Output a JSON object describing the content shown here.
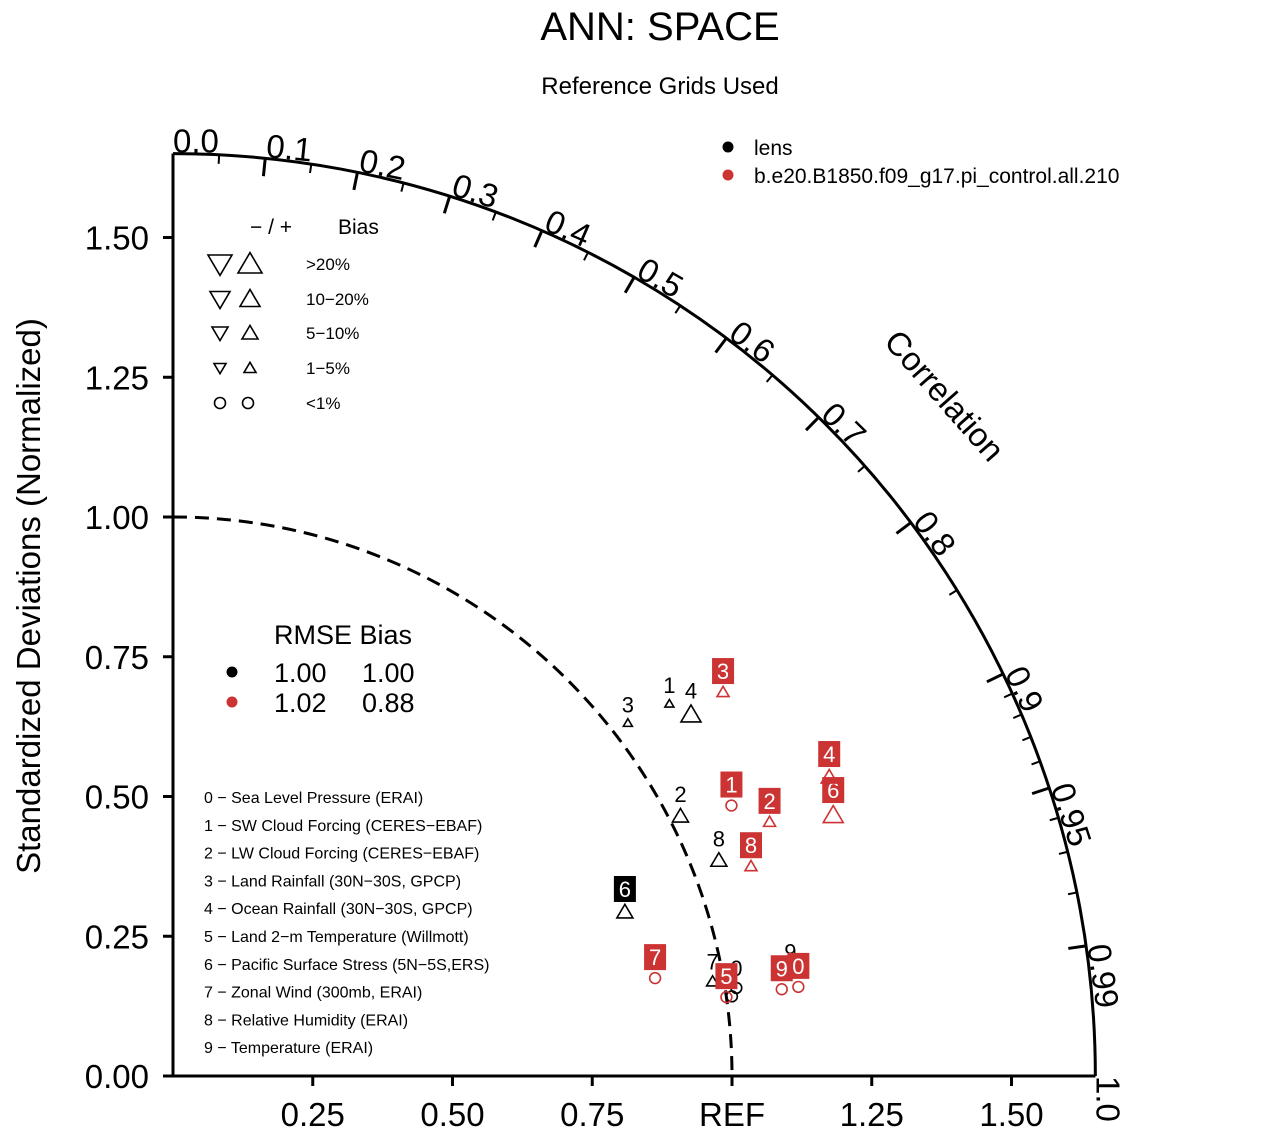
{
  "title": "ANN: SPACE",
  "subtitle": "Reference Grids Used",
  "colors": {
    "model_a": "#000000",
    "model_b": "#cc3333"
  },
  "chart_data": {
    "type": "scatter",
    "ylabel": "Standardized Deviations (Normalized)",
    "correlation_label": "Correlation",
    "x_ticks": [
      "0.25",
      "0.50",
      "0.75",
      "REF",
      "1.25",
      "1.50"
    ],
    "y_ticks": [
      "0.00",
      "0.25",
      "0.50",
      "0.75",
      "1.00",
      "1.25",
      "1.50"
    ],
    "correlation_ticks": [
      "0.0",
      "0.1",
      "0.2",
      "0.3",
      "0.4",
      "0.5",
      "0.6",
      "0.7",
      "0.8",
      "0.9",
      "0.95",
      "0.99",
      "1.0"
    ],
    "std_range": [
      0,
      1.65
    ],
    "legend": [
      {
        "name": "lens",
        "color": "#000000"
      },
      {
        "name": "b.e20.B1850.f09_g17.pi_control.all.210",
        "color": "#cc3333"
      }
    ],
    "bias_legend": {
      "header_sign": "− / +",
      "header_label": "Bias",
      "rows": [
        "<1%",
        "1−5%",
        "5−10%",
        "10−20%",
        ">20%"
      ]
    },
    "stats": {
      "header": "RMSE Bias",
      "rows": [
        {
          "color": "#000000",
          "rmse": "1.00",
          "bias": "1.00"
        },
        {
          "color": "#cc3333",
          "rmse": "1.02",
          "bias": "0.88"
        }
      ]
    },
    "variables": [
      "0 − Sea Level Pressure (ERAI)",
      "1 − SW Cloud Forcing (CERES−EBAF)",
      "2 − LW Cloud Forcing (CERES−EBAF)",
      "3 − Land Rainfall (30N−30S, GPCP)",
      "4 − Ocean Rainfall (30N−30S, GPCP)",
      "5 − Land 2−m Temperature (Willmott)",
      "6 − Pacific Surface Stress (5N−5S,ERS)",
      "7 − Zonal Wind (300mb, ERAI)",
      "8 − Relative Humidity (ERAI)",
      "9 − Temperature (ERAI)"
    ],
    "points": [
      {
        "series": 0,
        "label": "3",
        "r": 0.79,
        "std": 1.03,
        "marker": "up",
        "size": 1
      },
      {
        "series": 0,
        "label": "1",
        "r": 0.8,
        "std": 1.11,
        "marker": "up",
        "size": 1
      },
      {
        "series": 0,
        "label": "4",
        "r": 0.82,
        "std": 1.13,
        "marker": "up",
        "size": 4
      },
      {
        "series": 0,
        "label": "2",
        "r": 0.89,
        "std": 1.02,
        "marker": "up",
        "size": 3
      },
      {
        "series": 0,
        "label": "8",
        "r": 0.93,
        "std": 1.05,
        "marker": "up",
        "size": 3
      },
      {
        "series": 0,
        "label": "6",
        "r": 0.94,
        "std": 0.86,
        "marker": "up",
        "size": 3
      },
      {
        "series": 0,
        "label": "7",
        "r": 0.985,
        "std": 0.98,
        "marker": "up",
        "size": 2
      },
      {
        "series": 0,
        "label": "5",
        "r": 0.99,
        "std": 1.01,
        "marker": "circle",
        "size": 2
      },
      {
        "series": 0,
        "label": "0",
        "r": 0.988,
        "std": 1.02,
        "marker": "circle",
        "size": 2
      },
      {
        "series": 0,
        "label": "9",
        "r": 0.986,
        "std": 1.12,
        "marker": "circle",
        "size": 2
      },
      {
        "series": 1,
        "label": "3",
        "r": 0.82,
        "std": 1.2,
        "marker": "up",
        "size": 2
      },
      {
        "series": 1,
        "label": "1",
        "r": 0.9,
        "std": 1.11,
        "marker": "circle",
        "size": 2
      },
      {
        "series": 1,
        "label": "2",
        "r": 0.92,
        "std": 1.16,
        "marker": "up",
        "size": 2
      },
      {
        "series": 1,
        "label": "6",
        "r": 0.93,
        "std": 1.27,
        "marker": "up",
        "size": 4
      },
      {
        "series": 1,
        "label": "4",
        "r": 0.91,
        "std": 1.29,
        "marker": "up",
        "size": 3
      },
      {
        "series": 1,
        "label": "8",
        "r": 0.94,
        "std": 1.1,
        "marker": "up",
        "size": 2
      },
      {
        "series": 1,
        "label": "7",
        "r": 0.98,
        "std": 0.88,
        "marker": "circle",
        "size": 2
      },
      {
        "series": 1,
        "label": "5",
        "r": 0.99,
        "std": 1.0,
        "marker": "circle",
        "size": 2
      },
      {
        "series": 1,
        "label": "9",
        "r": 0.99,
        "std": 1.1,
        "marker": "circle",
        "size": 2
      },
      {
        "series": 1,
        "label": "0",
        "r": 0.99,
        "std": 1.13,
        "marker": "circle",
        "size": 2
      }
    ]
  }
}
